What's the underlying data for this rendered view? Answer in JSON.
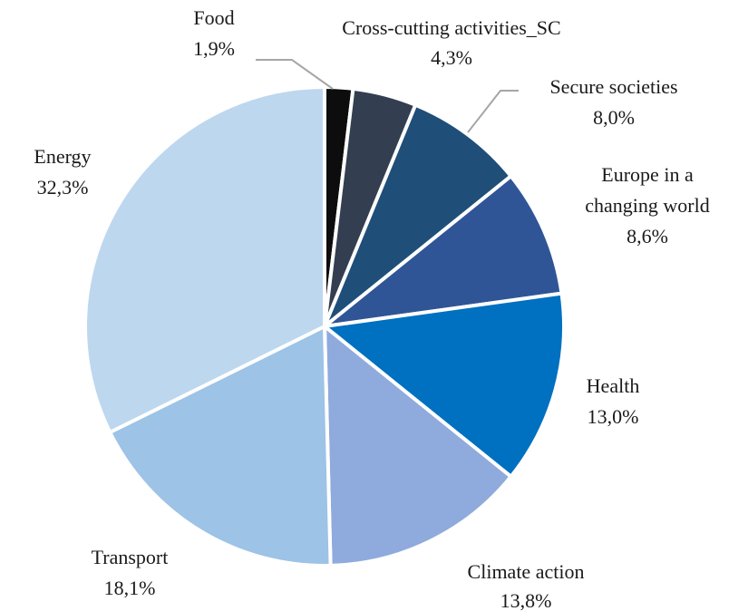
{
  "chart_data": {
    "type": "pie",
    "title": "",
    "categories": [
      "Food",
      "Cross-cutting activities_SC",
      "Secure societies",
      "Europe in a changing world",
      "Health",
      "Climate action",
      "Transport",
      "Energy"
    ],
    "values": [
      1.9,
      4.3,
      8.0,
      8.6,
      13.0,
      13.8,
      18.1,
      32.3
    ],
    "value_labels": [
      "1,9%",
      "4,3%",
      "8,0%",
      "8,6%",
      "13,0%",
      "13,8%",
      "18,1%",
      "32,3%"
    ],
    "colors": [
      "#0d0d0d",
      "#333f50",
      "#1f4e79",
      "#2f5597",
      "#0070c0",
      "#8faadc",
      "#9dc3e6",
      "#bdd7ee"
    ],
    "start": "12 o'clock",
    "direction": "clockwise",
    "legend": "none",
    "label_lines": {
      "food": [
        "Food"
      ],
      "cross_cutting": [
        "Cross-cutting activities_SC"
      ],
      "secure": [
        "Secure societies"
      ],
      "europe": [
        "Europe in a",
        "changing world"
      ],
      "health": [
        "Health"
      ],
      "climate": [
        "Climate action"
      ],
      "transport": [
        "Transport"
      ],
      "energy": [
        "Energy"
      ]
    }
  }
}
